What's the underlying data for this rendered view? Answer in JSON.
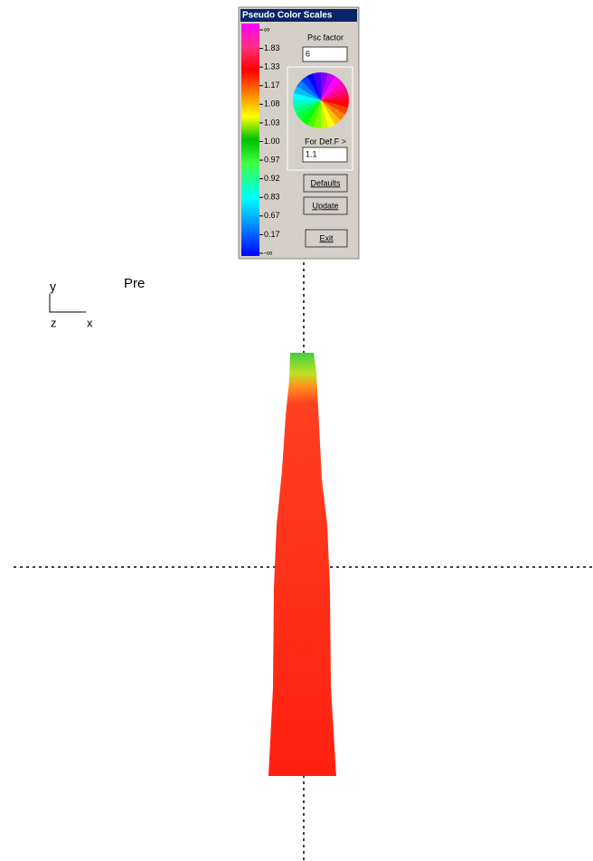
{
  "dialog": {
    "title": "Pseudo Color Scales",
    "scale_labels": [
      "∞",
      "1.83",
      "1.33",
      "1.17",
      "1.08",
      "1.03",
      "1.00",
      "0.97",
      "0.92",
      "0.83",
      "0.67",
      "0.17",
      "-∞"
    ],
    "psc_factor_label": "Psc factor",
    "psc_factor_value": "6",
    "def_f_label": "For Def.F >",
    "def_f_value": "1.1",
    "buttons": [
      "Defaults",
      "Update",
      "Exit"
    ]
  },
  "viewport": {
    "axis_y": "y",
    "axis_z": "z",
    "axis_x": "x",
    "mode_label": "Pre"
  }
}
